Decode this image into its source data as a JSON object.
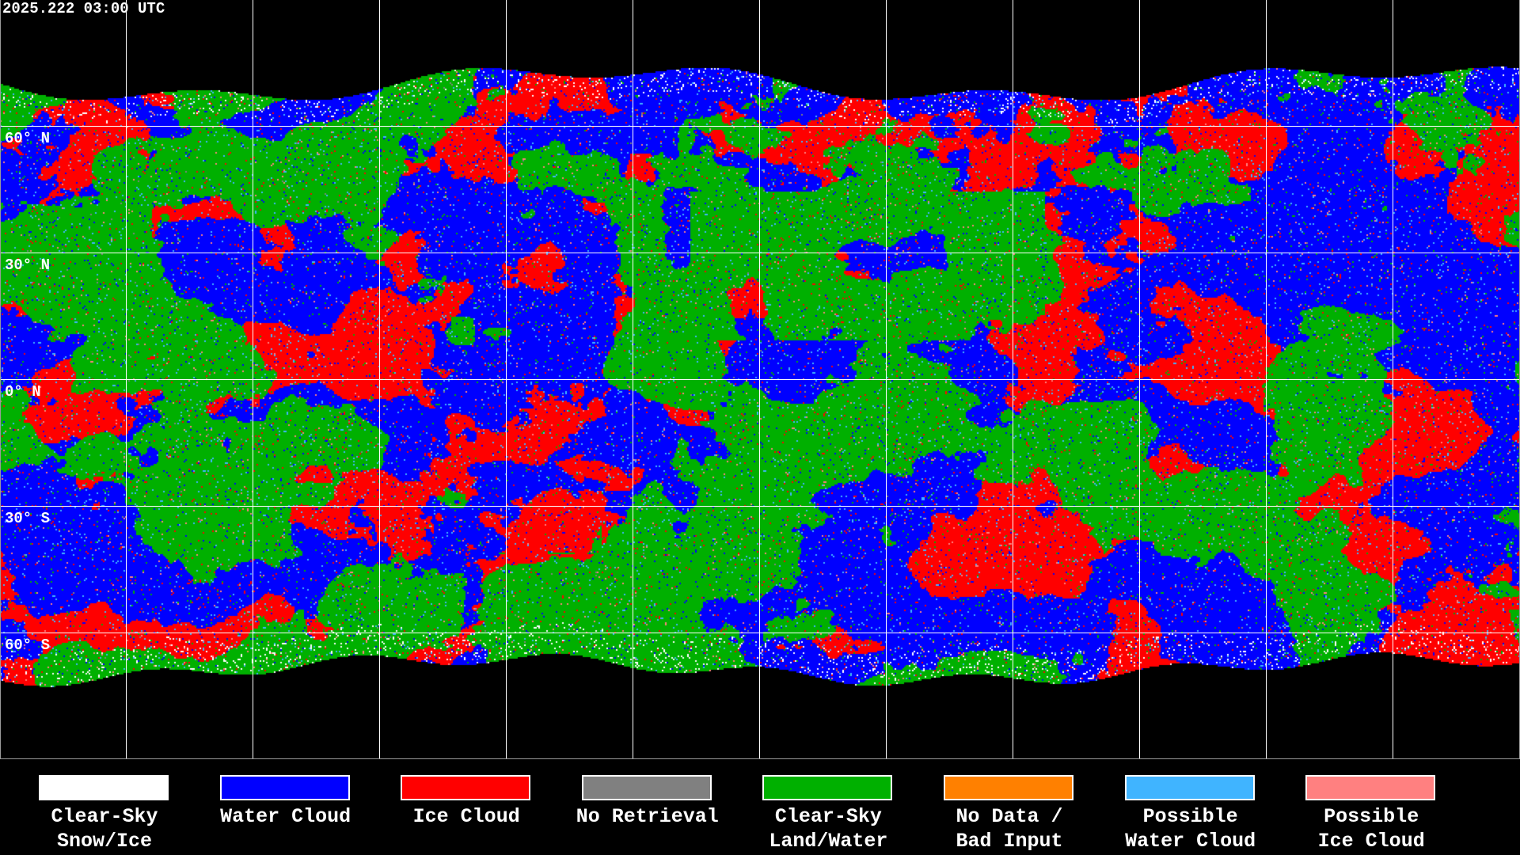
{
  "timestamp": "2025.222 03:00 UTC",
  "lat_labels": [
    "60° N",
    "30° N",
    "0° N",
    "30° S",
    "60° S"
  ],
  "map_colors": {
    "clear_snow_ice": "#ffffff",
    "water_cloud": "#0000ff",
    "ice_cloud": "#ff0000",
    "no_retrieval": "#808080",
    "clear_land_water": "#00b000",
    "no_data": "#ff8000",
    "possible_water_cloud": "#40b4ff",
    "possible_ice_cloud": "#ff8080",
    "background": "#000000",
    "coastline": "#ffffff"
  },
  "legend": [
    {
      "line1": "Clear-Sky",
      "line2": "Snow/Ice",
      "color": "#ffffff"
    },
    {
      "line1": "Water Cloud",
      "line2": "",
      "color": "#0000ff"
    },
    {
      "line1": "Ice Cloud",
      "line2": "",
      "color": "#ff0000"
    },
    {
      "line1": "No Retrieval",
      "line2": "",
      "color": "#808080"
    },
    {
      "line1": "Clear-Sky",
      "line2": "Land/Water",
      "color": "#00b000"
    },
    {
      "line1": "No Data /",
      "line2": "Bad Input",
      "color": "#ff8000"
    },
    {
      "line1": "Possible",
      "line2": "Water Cloud",
      "color": "#40b4ff"
    },
    {
      "line1": "Possible",
      "line2": "Ice Cloud",
      "color": "#ff8080"
    }
  ]
}
